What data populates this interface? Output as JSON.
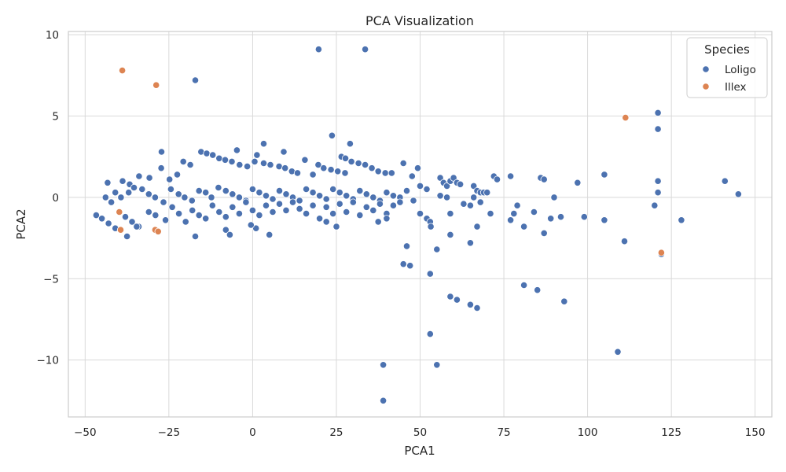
{
  "colors": {
    "Loligo": "#4c72b0",
    "Illex": "#dd8452",
    "grid": "#d9d9d9",
    "frame": "#cccccc"
  },
  "chart_data": {
    "type": "scatter",
    "title": "PCA Visualization",
    "xlabel": "PCA1",
    "ylabel": "PCA2",
    "xlim": [
      -55,
      155
    ],
    "ylim": [
      -13.5,
      10.2
    ],
    "xticks": [
      -50,
      -25,
      0,
      25,
      50,
      75,
      100,
      125,
      150
    ],
    "yticks": [
      -10,
      -5,
      0,
      5,
      10
    ],
    "grid": true,
    "legend": {
      "title": "Species",
      "placement": "top-right",
      "entries": [
        "Loligo",
        "Illex"
      ]
    },
    "series": [
      {
        "name": "Loligo",
        "points": [
          [
            19.7,
            9.1
          ],
          [
            33.6,
            9.1
          ],
          [
            -17.1,
            7.2
          ],
          [
            23.7,
            3.8
          ],
          [
            29.1,
            3.3
          ],
          [
            3.3,
            3.3
          ],
          [
            -4.7,
            2.9
          ],
          [
            9.3,
            2.8
          ],
          [
            -27.2,
            2.8
          ],
          [
            1.3,
            2.6
          ],
          [
            26.5,
            2.5
          ],
          [
            27.7,
            2.4
          ],
          [
            -15.4,
            2.8
          ],
          [
            -13.7,
            2.7
          ],
          [
            -11.9,
            2.6
          ],
          [
            -10.0,
            2.4
          ],
          [
            -8.2,
            2.3
          ],
          [
            -6.2,
            2.2
          ],
          [
            -3.9,
            2.0
          ],
          [
            -1.6,
            1.9
          ],
          [
            0.6,
            2.2
          ],
          [
            3.3,
            2.1
          ],
          [
            5.3,
            2.0
          ],
          [
            7.9,
            1.9
          ],
          [
            9.7,
            1.8
          ],
          [
            11.7,
            1.6
          ],
          [
            13.4,
            1.5
          ],
          [
            15.6,
            2.3
          ],
          [
            18.0,
            1.4
          ],
          [
            19.6,
            2.0
          ],
          [
            21.2,
            1.8
          ],
          [
            23.4,
            1.7
          ],
          [
            25.4,
            1.6
          ],
          [
            27.6,
            1.5
          ],
          [
            29.5,
            2.2
          ],
          [
            31.6,
            2.1
          ],
          [
            33.6,
            2.0
          ],
          [
            35.6,
            1.8
          ],
          [
            37.5,
            1.6
          ],
          [
            39.6,
            1.5
          ],
          [
            41.5,
            1.5
          ],
          [
            45.0,
            2.1
          ],
          [
            47.6,
            1.3
          ],
          [
            49.3,
            1.8
          ],
          [
            -20.7,
            2.2
          ],
          [
            -18.6,
            2.0
          ],
          [
            -22.5,
            1.4
          ],
          [
            -24.8,
            1.1
          ],
          [
            -30.8,
            1.2
          ],
          [
            -33.9,
            1.3
          ],
          [
            -36.7,
            0.8
          ],
          [
            -38.8,
            1.0
          ],
          [
            -43.3,
            0.9
          ],
          [
            -27.3,
            1.8
          ],
          [
            -41.0,
            0.3
          ],
          [
            -43.9,
            0.0
          ],
          [
            -42.2,
            -0.3
          ],
          [
            -39.3,
            0.0
          ],
          [
            -37.0,
            0.3
          ],
          [
            -35.4,
            0.6
          ],
          [
            -33.0,
            0.5
          ],
          [
            -31.0,
            0.2
          ],
          [
            -29.1,
            0.0
          ],
          [
            -26.6,
            -0.3
          ],
          [
            -24.4,
            0.5
          ],
          [
            -22.1,
            0.2
          ],
          [
            -20.3,
            0.0
          ],
          [
            -18.1,
            -0.2
          ],
          [
            -16.0,
            0.4
          ],
          [
            -14.0,
            0.3
          ],
          [
            -12.3,
            0.0
          ],
          [
            -10.2,
            0.6
          ],
          [
            -8.0,
            0.4
          ],
          [
            -6.0,
            0.2
          ],
          [
            -4.0,
            0.0
          ],
          [
            -2.0,
            -0.2
          ],
          [
            0.0,
            0.5
          ],
          [
            2.0,
            0.3
          ],
          [
            4.0,
            0.1
          ],
          [
            6.0,
            -0.1
          ],
          [
            8.0,
            0.4
          ],
          [
            10.0,
            0.2
          ],
          [
            12.0,
            0.0
          ],
          [
            14.0,
            -0.2
          ],
          [
            16.0,
            0.5
          ],
          [
            18.0,
            0.3
          ],
          [
            20.0,
            0.1
          ],
          [
            22.0,
            -0.1
          ],
          [
            24.0,
            0.5
          ],
          [
            26.0,
            0.3
          ],
          [
            28.0,
            0.1
          ],
          [
            30.0,
            -0.1
          ],
          [
            32.0,
            0.4
          ],
          [
            34.0,
            0.2
          ],
          [
            36.0,
            0.0
          ],
          [
            38.0,
            -0.2
          ],
          [
            40.0,
            0.3
          ],
          [
            42.0,
            0.1
          ],
          [
            44.0,
            0.0
          ],
          [
            46.0,
            0.4
          ],
          [
            48.0,
            -0.2
          ],
          [
            -46.7,
            -1.1
          ],
          [
            -45.0,
            -1.3
          ],
          [
            -43.0,
            -1.6
          ],
          [
            -41.0,
            -1.9
          ],
          [
            -38.0,
            -1.2
          ],
          [
            -36.0,
            -1.5
          ],
          [
            -34.0,
            -1.8
          ],
          [
            -31.0,
            -0.9
          ],
          [
            -29.0,
            -1.1
          ],
          [
            -26.0,
            -1.4
          ],
          [
            -24.0,
            -0.6
          ],
          [
            -22.0,
            -1.0
          ],
          [
            -20.0,
            -1.5
          ],
          [
            -18.0,
            -0.8
          ],
          [
            -16.0,
            -1.1
          ],
          [
            -14.0,
            -1.3
          ],
          [
            -12.0,
            -0.5
          ],
          [
            -10.0,
            -0.9
          ],
          [
            -8.0,
            -1.2
          ],
          [
            -6.0,
            -0.6
          ],
          [
            -4.0,
            -1.0
          ],
          [
            -2.0,
            -0.3
          ],
          [
            0.0,
            -0.8
          ],
          [
            2.0,
            -1.1
          ],
          [
            4.0,
            -0.5
          ],
          [
            6.0,
            -0.9
          ],
          [
            8.0,
            -0.4
          ],
          [
            10.0,
            -0.8
          ],
          [
            12.0,
            -0.3
          ],
          [
            14.0,
            -0.7
          ],
          [
            16.0,
            -1.0
          ],
          [
            18.0,
            -0.5
          ],
          [
            20.0,
            -1.3
          ],
          [
            22.0,
            -0.6
          ],
          [
            24.0,
            -1.0
          ],
          [
            26.0,
            -0.4
          ],
          [
            28.0,
            -0.9
          ],
          [
            30.0,
            -0.3
          ],
          [
            32.0,
            -1.1
          ],
          [
            34.0,
            -0.6
          ],
          [
            36.0,
            -0.8
          ],
          [
            38.0,
            -0.4
          ],
          [
            40.0,
            -1.0
          ],
          [
            42.0,
            -0.5
          ],
          [
            44.0,
            -0.3
          ],
          [
            -8.0,
            -2.0
          ],
          [
            -6.8,
            -2.3
          ],
          [
            -17.1,
            -2.4
          ],
          [
            -37.5,
            -2.4
          ],
          [
            -34.6,
            -1.8
          ],
          [
            1.0,
            -1.9
          ],
          [
            5.0,
            -2.3
          ],
          [
            -0.5,
            -1.7
          ],
          [
            22.0,
            -1.5
          ],
          [
            25.0,
            -1.8
          ],
          [
            37.5,
            -1.5
          ],
          [
            40.0,
            -1.3
          ],
          [
            45.0,
            -4.1
          ],
          [
            46.0,
            -3.0
          ],
          [
            47.0,
            -4.2
          ],
          [
            50.0,
            -1.0
          ],
          [
            52.0,
            -1.3
          ],
          [
            53.0,
            -1.5
          ],
          [
            53.2,
            -1.8
          ],
          [
            55.0,
            -3.2
          ],
          [
            53.0,
            -4.7
          ],
          [
            59.0,
            -1.0
          ],
          [
            59.0,
            -2.3
          ],
          [
            53.0,
            -8.4
          ],
          [
            55.0,
            -10.3
          ],
          [
            59.0,
            -6.1
          ],
          [
            61.0,
            -6.3
          ],
          [
            63.0,
            -0.4
          ],
          [
            65.0,
            -0.5
          ],
          [
            65.0,
            -2.8
          ],
          [
            65.0,
            -6.6
          ],
          [
            67.0,
            -6.8
          ],
          [
            67.0,
            -1.8
          ],
          [
            71.0,
            -1.0
          ],
          [
            77.0,
            -1.4
          ],
          [
            78.0,
            -1.0
          ],
          [
            81.0,
            -1.8
          ],
          [
            81.0,
            -5.4
          ],
          [
            84.0,
            -0.9
          ],
          [
            85.0,
            -5.7
          ],
          [
            87.0,
            -2.2
          ],
          [
            89.0,
            -1.3
          ],
          [
            92.0,
            -1.2
          ],
          [
            93.0,
            -6.4
          ],
          [
            99.0,
            -1.2
          ],
          [
            105.0,
            -1.4
          ],
          [
            109.0,
            -9.5
          ],
          [
            111.0,
            -2.7
          ],
          [
            122.0,
            -3.5
          ],
          [
            128.0,
            -1.4
          ],
          [
            39.0,
            -10.3
          ],
          [
            39.0,
            -12.5
          ],
          [
            50.0,
            0.7
          ],
          [
            52.0,
            0.5
          ],
          [
            56.0,
            1.2
          ],
          [
            57.0,
            0.9
          ],
          [
            58.0,
            0.7
          ],
          [
            59.0,
            1.0
          ],
          [
            60.0,
            1.2
          ],
          [
            61.0,
            0.9
          ],
          [
            62.0,
            0.8
          ],
          [
            56.0,
            0.1
          ],
          [
            58.0,
            0.0
          ],
          [
            66.0,
            0.7
          ],
          [
            67.0,
            0.4
          ],
          [
            68.0,
            0.3
          ],
          [
            69.0,
            0.3
          ],
          [
            70.0,
            0.3
          ],
          [
            72.0,
            1.3
          ],
          [
            73.0,
            1.1
          ],
          [
            77.0,
            1.3
          ],
          [
            66.0,
            0.0
          ],
          [
            68.0,
            -0.3
          ],
          [
            79.0,
            -0.5
          ],
          [
            86.0,
            1.2
          ],
          [
            87.0,
            1.1
          ],
          [
            90.0,
            0.0
          ],
          [
            97.0,
            0.9
          ],
          [
            105.0,
            1.4
          ],
          [
            120.0,
            -0.5
          ],
          [
            121.0,
            0.3
          ],
          [
            121.0,
            1.0
          ],
          [
            121.0,
            4.2
          ],
          [
            121.0,
            5.2
          ],
          [
            141.0,
            1.0
          ],
          [
            145.0,
            0.2
          ]
        ]
      },
      {
        "name": "Illex",
        "points": [
          [
            -38.9,
            7.8
          ],
          [
            -28.8,
            6.9
          ],
          [
            111.3,
            4.9
          ],
          [
            -29.1,
            -2.0
          ],
          [
            -28.2,
            -2.1
          ],
          [
            -39.4,
            -2.0
          ],
          [
            -39.8,
            -0.9
          ],
          [
            122.0,
            -3.4
          ]
        ]
      }
    ]
  }
}
